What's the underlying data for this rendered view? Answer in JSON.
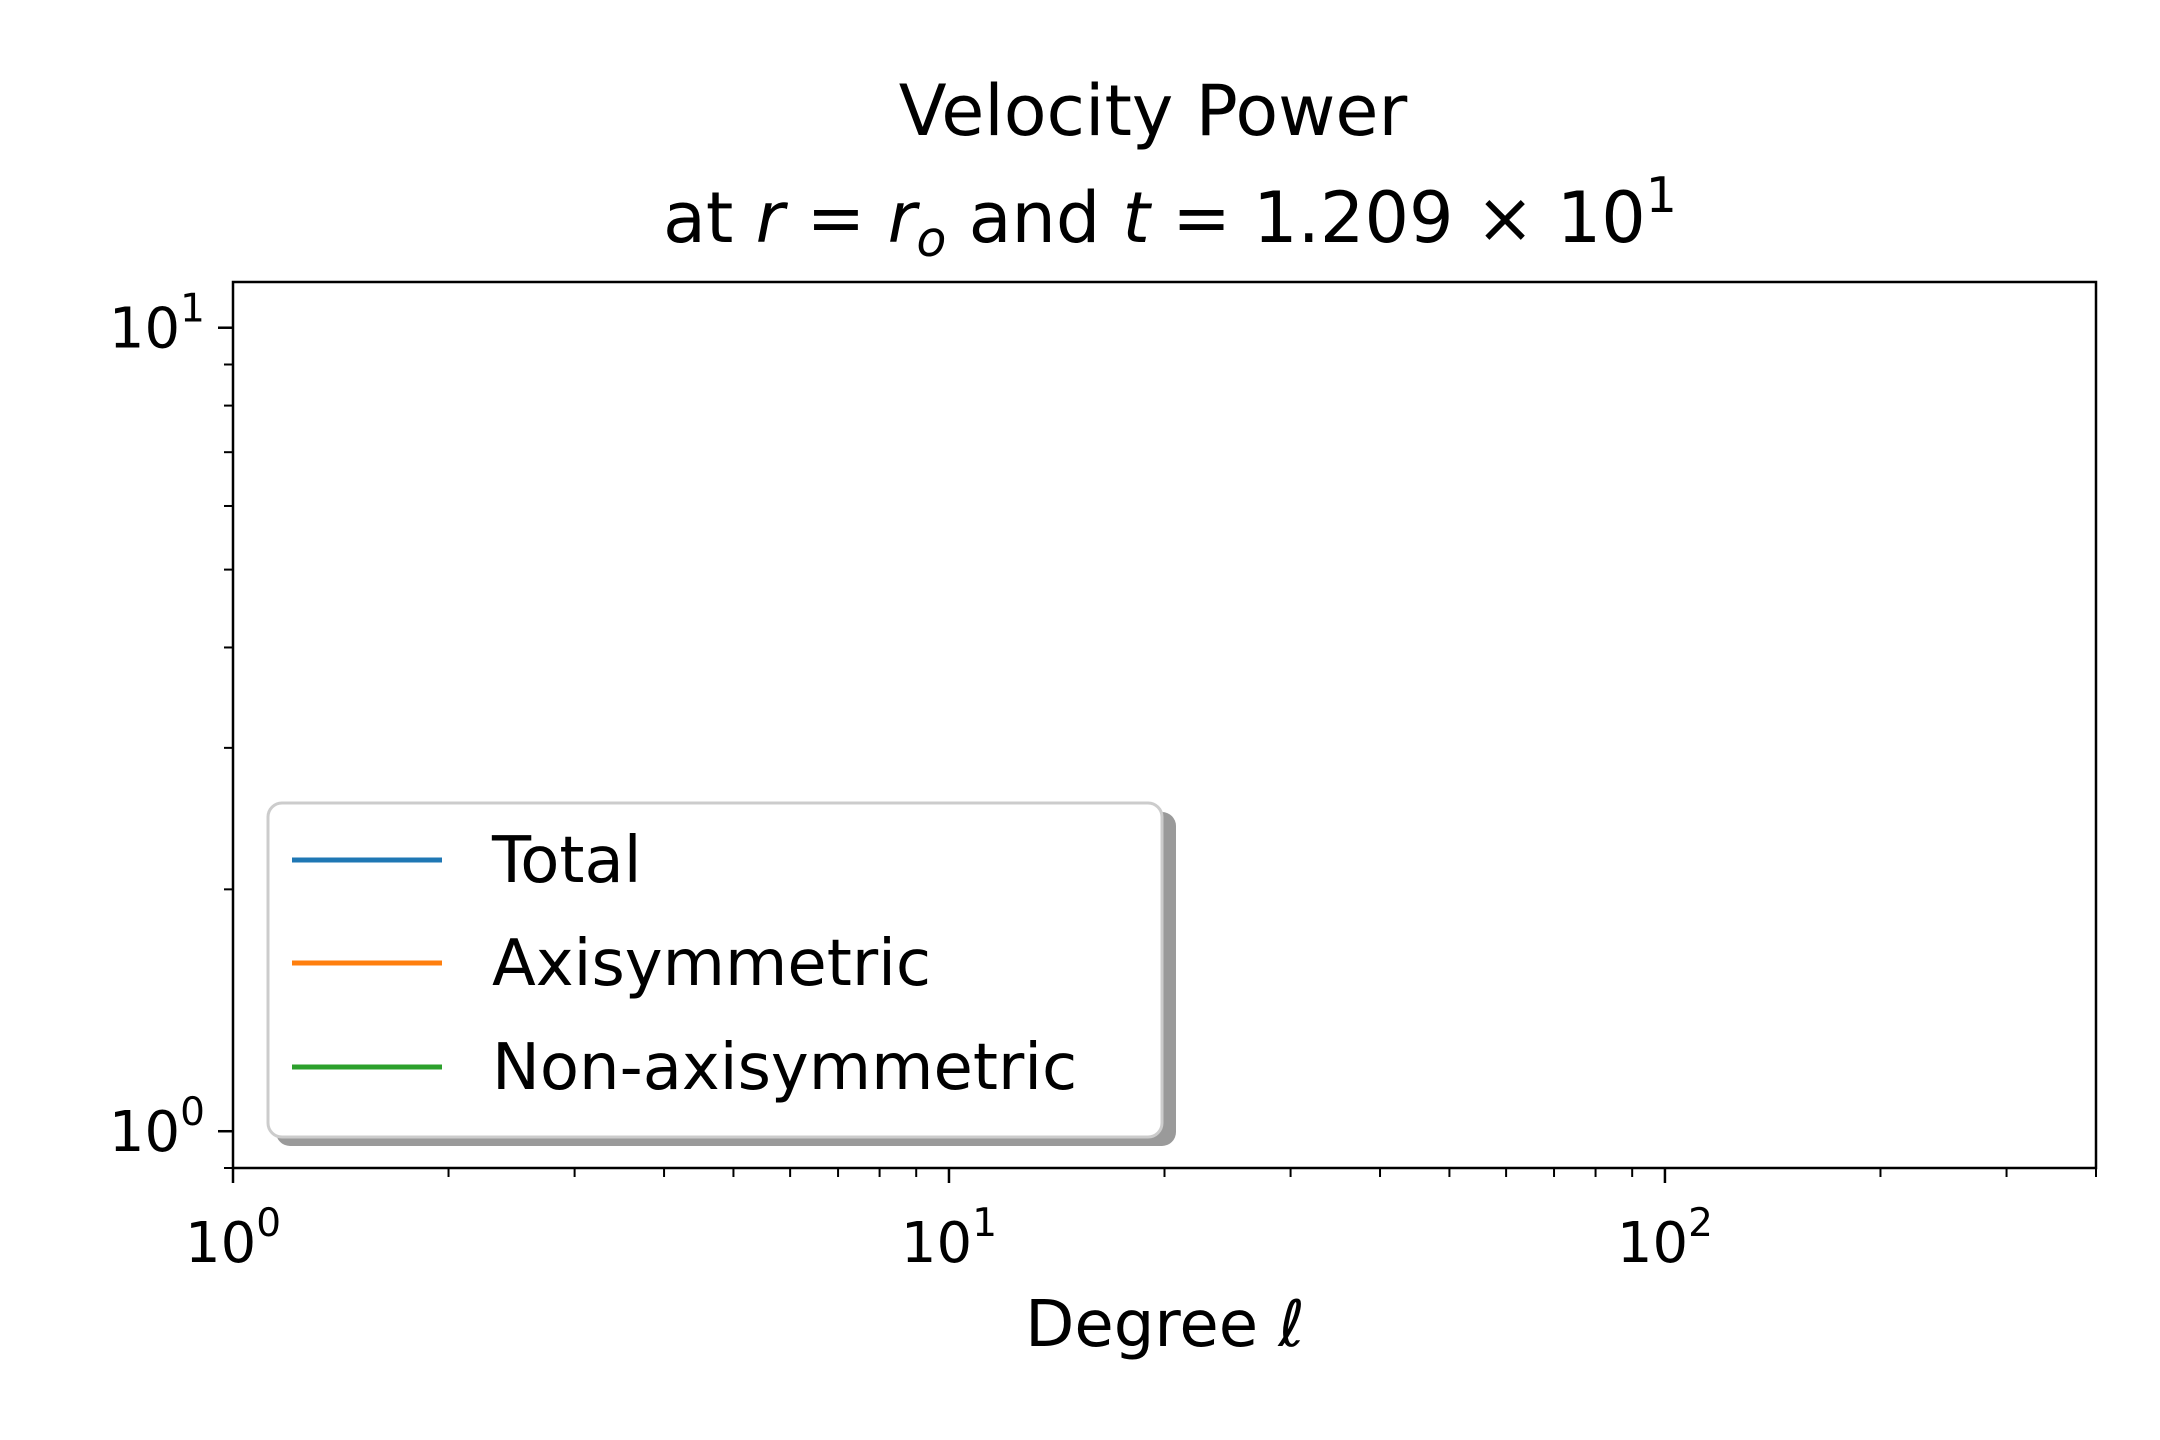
{
  "chart_data": {
    "type": "line",
    "title": "Velocity Power",
    "subtitle": {
      "prefix": "at ",
      "r_sym": "r",
      "eq": " = ",
      "r_o_sym": "r",
      "r_o_sub": "o",
      "and": " and ",
      "t_sym": "t",
      "t_mantissa": "1.209 × 10",
      "t_exp": "1"
    },
    "xlabel": "Degree ",
    "xlabel_symbol": "ℓ",
    "ylabel": "",
    "x_scale": "log",
    "y_scale": "log",
    "xlim": [
      1,
      400
    ],
    "ylim": [
      0.9,
      11.4
    ],
    "x_ticks": [
      {
        "value": 1,
        "base": "10",
        "exp": "0"
      },
      {
        "value": 10,
        "base": "10",
        "exp": "1"
      },
      {
        "value": 100,
        "base": "10",
        "exp": "2"
      }
    ],
    "y_ticks": [
      {
        "value": 1,
        "base": "10",
        "exp": "0"
      },
      {
        "value": 10,
        "base": "10",
        "exp": "1"
      }
    ],
    "grid": false,
    "legend_position": "lower-left",
    "series": [
      {
        "name": "Total",
        "color": "#1f77b4",
        "x": [],
        "y": []
      },
      {
        "name": "Axisymmetric",
        "color": "#ff7f0e",
        "x": [],
        "y": []
      },
      {
        "name": "Non-axisymmetric",
        "color": "#2ca02c",
        "x": [],
        "y": []
      }
    ]
  }
}
